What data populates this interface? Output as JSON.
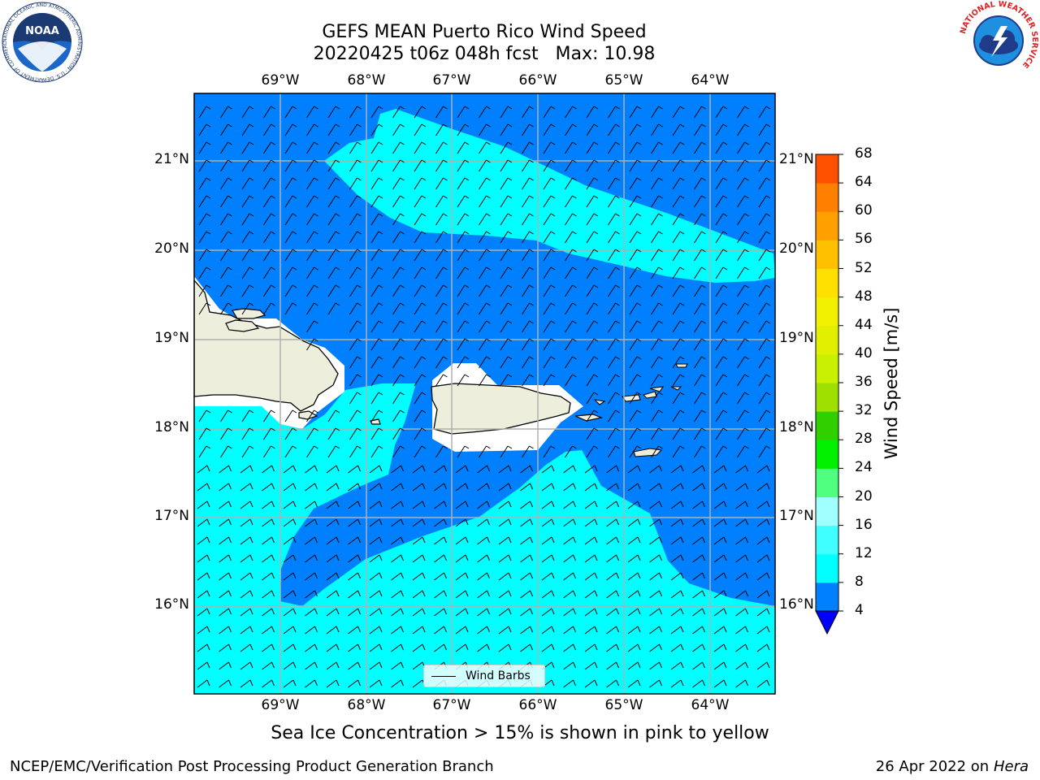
{
  "header": {
    "title_line1": "GEFS MEAN Puerto Rico Wind Speed",
    "title_line2": "20220425 t06z 048h fcst   Max: 10.98"
  },
  "logos": {
    "noaa_text": "NOAA",
    "noaa_ring_text": "NATIONAL OCEANIC AND ATMOSPHERIC ADMINISTRATION · U.S. DEPARTMENT OF COMMERCE",
    "nws_ring_text": "NATIONAL WEATHER SERVICE"
  },
  "map": {
    "lon_ticks": [
      "69°W",
      "68°W",
      "67°W",
      "66°W",
      "65°W",
      "64°W"
    ],
    "lat_ticks": [
      "21°N",
      "20°N",
      "19°N",
      "18°N",
      "17°N",
      "16°N"
    ],
    "legend_label": "Wind Barbs",
    "land_color": "#eeeedc",
    "mask_color": "#ffffff"
  },
  "colorbar": {
    "label": "Wind Speed [m/s]",
    "ticks": [
      "4",
      "8",
      "12",
      "16",
      "20",
      "24",
      "28",
      "32",
      "36",
      "40",
      "44",
      "48",
      "52",
      "56",
      "60",
      "64",
      "68"
    ],
    "under_color": "#0000ff",
    "colors": [
      "#0080ff",
      "#00ffff",
      "#40ffff",
      "#a0ffff",
      "#50ff80",
      "#00f000",
      "#30d000",
      "#a0e000",
      "#c8f000",
      "#e0f000",
      "#f0f000",
      "#ffe000",
      "#ffc000",
      "#ffa000",
      "#ff8000",
      "#ff5000",
      "#ff2000",
      "#ff0000"
    ]
  },
  "footer": {
    "caption": "Sea Ice Concentration > 15% is shown in pink to yellow",
    "credit_left": "NCEP/EMC/Verification Post Processing Product Generation Branch",
    "credit_date": "26 Apr 2022 on ",
    "credit_machine": "Hera"
  }
}
